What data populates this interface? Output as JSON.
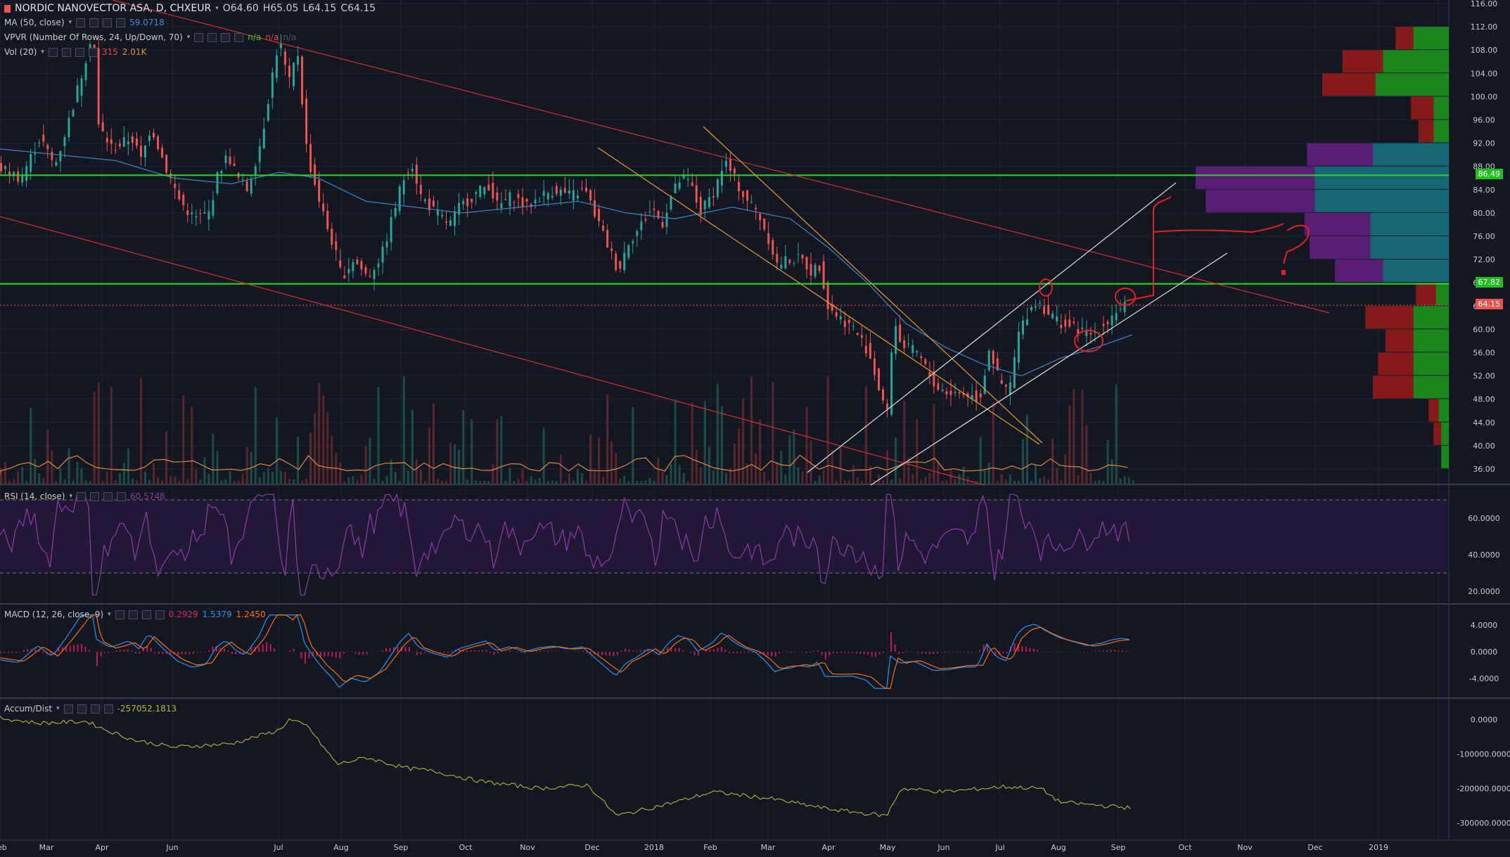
{
  "header": {
    "symbol": "NORDIC NANOVECTOR ASA, D, CHXEUR",
    "open": "O64.60",
    "high": "H65.05",
    "low": "L64.15",
    "close": "C64.15",
    "ma_label": "MA (50, close)",
    "ma_value": "59.0718",
    "vpvr_label": "VPVR (Number Of Rows, 24, Up/Down, 70)",
    "vpvr_v1": "n/a",
    "vpvr_v2": "n/a",
    "vpvr_v3": "n/a",
    "vol_label": "Vol (20)",
    "vol_v1": "315",
    "vol_v2": "2.01K",
    "rsi_label": "RSI (14, close)",
    "rsi_value": "60.5748",
    "macd_label": "MACD (12, 26, close, 9)",
    "macd_v1": "0.2929",
    "macd_v2": "1.5379",
    "macd_v3": "1.2450",
    "ad_label": "Accum/Dist",
    "ad_value": "-257052.1813"
  },
  "levels": {
    "upper": "86.49",
    "lower": "67.82",
    "last": "64.15"
  },
  "colors": {
    "bg": "#131722",
    "up": "#26a69a",
    "down": "#ef5350",
    "green_line": "#1fdc1f",
    "ma": "#3d7fb8",
    "rsi": "#8e3ba8",
    "macd": "#2196f3",
    "signal": "#ff6d00",
    "hist": "#e91e63",
    "ad": "#b5b52b",
    "vol_ma": "#e08a3c"
  },
  "chart_data": [
    {
      "type": "candlestick",
      "title": "NORDIC NANOVECTOR ASA, D, CHXEUR",
      "x_ticks": [
        "Feb",
        "Mar",
        "Apr",
        "Jun",
        "Jul",
        "Aug",
        "Sep",
        "Oct",
        "Nov",
        "Dec",
        "2018",
        "Feb",
        "Mar",
        "Apr",
        "May",
        "Jun",
        "Jul",
        "Aug",
        "Sep",
        "Oct",
        "Nov",
        "Dec",
        "2019"
      ],
      "y_ticks": [
        "116.00",
        "112.00",
        "108.00",
        "104.00",
        "100.00",
        "96.00",
        "92.00",
        "88.00",
        "84.00",
        "80.00",
        "76.00",
        "72.00",
        "68.00",
        "64.00",
        "60.00",
        "56.00",
        "52.00",
        "48.00",
        "44.00",
        "40.00",
        "36.00"
      ],
      "ylim": [
        34,
        117
      ],
      "price_path": [
        [
          0,
          88
        ],
        [
          25,
          86
        ],
        [
          45,
          93
        ],
        [
          60,
          88
        ],
        [
          75,
          96
        ],
        [
          90,
          105
        ],
        [
          100,
          112
        ],
        [
          105,
          95
        ],
        [
          120,
          91
        ],
        [
          140,
          93
        ],
        [
          150,
          89
        ],
        [
          160,
          95
        ],
        [
          175,
          88
        ],
        [
          190,
          82
        ],
        [
          205,
          79
        ],
        [
          220,
          80
        ],
        [
          230,
          87
        ],
        [
          240,
          90
        ],
        [
          250,
          86
        ],
        [
          260,
          84
        ],
        [
          275,
          93
        ],
        [
          285,
          103
        ],
        [
          293,
          110
        ],
        [
          303,
          102
        ],
        [
          312,
          108
        ],
        [
          322,
          90
        ],
        [
          330,
          85
        ],
        [
          340,
          79
        ],
        [
          350,
          74
        ],
        [
          358,
          69
        ],
        [
          370,
          72
        ],
        [
          385,
          69
        ],
        [
          400,
          73
        ],
        [
          410,
          79
        ],
        [
          420,
          85
        ],
        [
          430,
          89
        ],
        [
          440,
          83
        ],
        [
          455,
          80
        ],
        [
          470,
          78
        ],
        [
          480,
          81
        ],
        [
          495,
          83
        ],
        [
          510,
          85
        ],
        [
          520,
          81
        ],
        [
          535,
          83
        ],
        [
          550,
          81
        ],
        [
          565,
          83
        ],
        [
          580,
          84
        ],
        [
          595,
          83
        ],
        [
          610,
          84
        ],
        [
          620,
          80
        ],
        [
          635,
          74
        ],
        [
          645,
          70
        ],
        [
          655,
          75
        ],
        [
          665,
          77
        ],
        [
          680,
          81
        ],
        [
          690,
          78
        ],
        [
          700,
          83
        ],
        [
          710,
          86
        ],
        [
          720,
          85
        ],
        [
          730,
          80
        ],
        [
          745,
          84
        ],
        [
          755,
          89
        ],
        [
          765,
          86
        ],
        [
          775,
          83
        ],
        [
          790,
          80
        ],
        [
          800,
          76
        ],
        [
          810,
          71
        ],
        [
          820,
          72
        ],
        [
          835,
          72
        ],
        [
          845,
          70
        ],
        [
          855,
          71
        ],
        [
          862,
          64
        ],
        [
          875,
          62
        ],
        [
          890,
          60
        ],
        [
          905,
          56
        ],
        [
          915,
          50
        ],
        [
          925,
          45
        ],
        [
          930,
          62
        ],
        [
          940,
          57
        ],
        [
          955,
          56
        ],
        [
          965,
          53
        ],
        [
          975,
          50
        ],
        [
          990,
          49
        ],
        [
          1005,
          49
        ],
        [
          1020,
          48
        ],
        [
          1030,
          57
        ],
        [
          1040,
          51
        ],
        [
          1050,
          49
        ],
        [
          1060,
          59
        ],
        [
          1070,
          63
        ],
        [
          1080,
          65
        ],
        [
          1090,
          63
        ],
        [
          1105,
          61
        ],
        [
          1120,
          60
        ],
        [
          1135,
          59
        ],
        [
          1150,
          61
        ],
        [
          1160,
          63
        ],
        [
          1170,
          64.15
        ]
      ],
      "ma50_path": [
        [
          0,
          91
        ],
        [
          60,
          90
        ],
        [
          120,
          89
        ],
        [
          180,
          86
        ],
        [
          240,
          85
        ],
        [
          290,
          87
        ],
        [
          330,
          86
        ],
        [
          380,
          82
        ],
        [
          430,
          81
        ],
        [
          480,
          80
        ],
        [
          540,
          81
        ],
        [
          600,
          82
        ],
        [
          650,
          80
        ],
        [
          700,
          79
        ],
        [
          760,
          81
        ],
        [
          820,
          79
        ],
        [
          860,
          74
        ],
        [
          900,
          68
        ],
        [
          940,
          61
        ],
        [
          980,
          57
        ],
        [
          1020,
          54
        ],
        [
          1060,
          52
        ],
        [
          1100,
          55
        ],
        [
          1140,
          57
        ],
        [
          1175,
          59.07
        ]
      ],
      "horizontal_levels": [
        86.49,
        67.82,
        64.15
      ],
      "volume_profile_rows": [
        {
          "price": 110,
          "up": 1.4,
          "down": 0.7
        },
        {
          "price": 106,
          "up": 2.6,
          "down": 1.6
        },
        {
          "price": 102,
          "up": 2.9,
          "down": 2.1
        },
        {
          "price": 98,
          "up": 0.6,
          "down": 0.9
        },
        {
          "price": 94,
          "up": 0.6,
          "down": 0.6
        },
        {
          "price": 90,
          "up": 3.0,
          "down": 2.6
        },
        {
          "price": 86,
          "up": 5.3,
          "down": 4.7
        },
        {
          "price": 82,
          "up": 5.3,
          "down": 4.3
        },
        {
          "price": 78,
          "up": 3.1,
          "down": 2.6
        },
        {
          "price": 74,
          "up": 3.1,
          "down": 2.4
        },
        {
          "price": 70,
          "up": 2.6,
          "down": 1.9
        },
        {
          "price": 66,
          "up": 0.5,
          "down": 0.8
        },
        {
          "price": 62,
          "up": 1.4,
          "down": 1.9
        },
        {
          "price": 58,
          "up": 1.4,
          "down": 1.1
        },
        {
          "price": 54,
          "up": 1.4,
          "down": 1.4
        },
        {
          "price": 50,
          "up": 1.4,
          "down": 1.6
        },
        {
          "price": 46,
          "up": 0.4,
          "down": 0.4
        },
        {
          "price": 42,
          "up": 0.3,
          "down": 0.3
        },
        {
          "price": 38,
          "up": 0.3,
          "down": 0.0
        }
      ]
    },
    {
      "type": "line",
      "title": "RSI (14, close)",
      "y_ticks": [
        "60.0000",
        "40.0000",
        "20.0000"
      ],
      "ylim": [
        15,
        75
      ],
      "bands": [
        70,
        30
      ]
    },
    {
      "type": "line",
      "title": "MACD (12, 26, close, 9)",
      "y_ticks": [
        "4.0000",
        "0.0000",
        "-4.0000"
      ],
      "ylim": [
        -6,
        6
      ]
    },
    {
      "type": "line",
      "title": "Accum/Dist",
      "y_ticks": [
        "0.0000",
        "-100000.0000",
        "-200000.0000",
        "-300000.0000"
      ],
      "ylim": [
        -330000,
        30000
      ],
      "path": [
        [
          0,
          5000
        ],
        [
          40,
          -10000
        ],
        [
          90,
          -5000
        ],
        [
          110,
          -30000
        ],
        [
          140,
          -60000
        ],
        [
          180,
          -80000
        ],
        [
          240,
          -70000
        ],
        [
          290,
          -30000
        ],
        [
          300,
          0
        ],
        [
          320,
          -20000
        ],
        [
          330,
          -60000
        ],
        [
          350,
          -130000
        ],
        [
          380,
          -110000
        ],
        [
          420,
          -140000
        ],
        [
          450,
          -150000
        ],
        [
          500,
          -180000
        ],
        [
          560,
          -200000
        ],
        [
          610,
          -190000
        ],
        [
          640,
          -280000
        ],
        [
          700,
          -240000
        ],
        [
          740,
          -210000
        ],
        [
          800,
          -230000
        ],
        [
          860,
          -260000
        ],
        [
          920,
          -280000
        ],
        [
          935,
          -200000
        ],
        [
          980,
          -210000
        ],
        [
          1040,
          -195000
        ],
        [
          1080,
          -200000
        ],
        [
          1100,
          -240000
        ],
        [
          1175,
          -257052
        ]
      ]
    }
  ]
}
